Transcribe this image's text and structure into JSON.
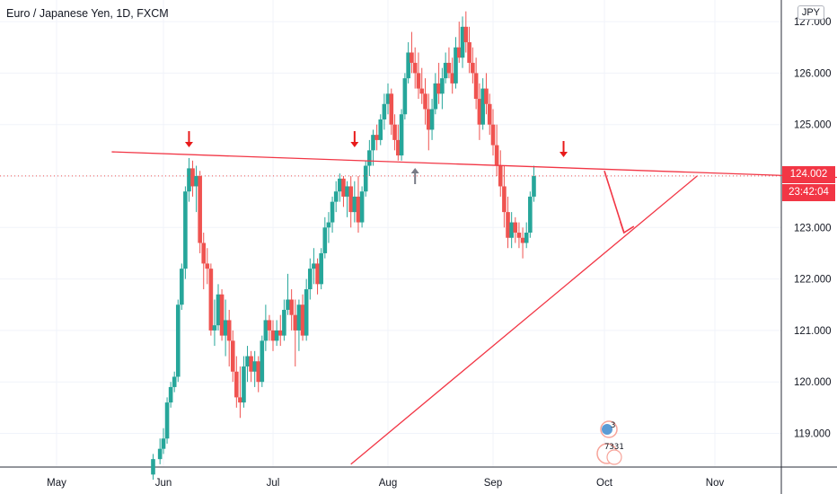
{
  "header": {
    "symbol_title": "Euro / Japanese Yen, 1D, FXCM"
  },
  "currency_label": "JPY",
  "price_badge": {
    "value": "124.002",
    "countdown": "23:42:04"
  },
  "colors": {
    "up": "#26a69a",
    "down": "#ef5350",
    "line": "#f23645",
    "marker": "#787b86",
    "axis": "#131722"
  },
  "event_markers": {
    "top": "3",
    "bottom": "7331"
  },
  "chart_data": {
    "type": "candlestick",
    "title": "Euro / Japanese Yen, 1D, FXCM",
    "y_axis_labels": [
      "119.000",
      "120.000",
      "121.000",
      "122.000",
      "123.000",
      "124.000",
      "125.000",
      "126.000",
      "127.000"
    ],
    "x_axis_labels": [
      "May",
      "Jun",
      "Jul",
      "Aug",
      "Sep",
      "Oct",
      "Nov"
    ],
    "ylim": [
      118.4,
      127.3
    ],
    "last_price": 124.002,
    "drawings": {
      "resistance_line": {
        "from": [
          "May 17",
          124.47
        ],
        "to": [
          "Nov 18",
          124.0
        ]
      },
      "support_line": {
        "from": [
          "Jul 22",
          118.4
        ],
        "to": [
          "Oct 27",
          124.0
        ]
      },
      "projection_arrow": {
        "from": [
          "Oct 1",
          124.1
        ],
        "to": [
          "Oct 7",
          122.9
        ]
      },
      "down_arrows": [
        "Jun 8",
        "Jul 23",
        "Sep 20"
      ],
      "up_arrow": "Aug 9"
    },
    "candles": [
      {
        "date": "May 29",
        "o": 118.2,
        "h": 118.6,
        "l": 118.1,
        "c": 118.5
      },
      {
        "date": "May 31",
        "o": 118.5,
        "h": 118.9,
        "l": 118.4,
        "c": 118.7
      },
      {
        "date": "Jun 1",
        "o": 118.7,
        "h": 119.1,
        "l": 118.6,
        "c": 118.9
      },
      {
        "date": "Jun 2",
        "o": 118.9,
        "h": 119.7,
        "l": 118.8,
        "c": 119.6
      },
      {
        "date": "Jun 3",
        "o": 119.6,
        "h": 120.0,
        "l": 119.5,
        "c": 119.9
      },
      {
        "date": "Jun 4",
        "o": 119.9,
        "h": 120.2,
        "l": 119.8,
        "c": 120.1
      },
      {
        "date": "Jun 5",
        "o": 120.1,
        "h": 121.6,
        "l": 120.0,
        "c": 121.5
      },
      {
        "date": "Jun 6",
        "o": 121.5,
        "h": 122.3,
        "l": 121.4,
        "c": 122.2
      },
      {
        "date": "Jun 7",
        "o": 122.2,
        "h": 123.8,
        "l": 122.0,
        "c": 123.7
      },
      {
        "date": "Jun 8",
        "o": 123.7,
        "h": 124.35,
        "l": 123.5,
        "c": 124.15
      },
      {
        "date": "Jun 9",
        "o": 124.15,
        "h": 124.3,
        "l": 123.6,
        "c": 123.8
      },
      {
        "date": "Jun 10",
        "o": 123.8,
        "h": 124.2,
        "l": 123.3,
        "c": 124.0
      },
      {
        "date": "Jun 11",
        "o": 124.0,
        "h": 124.1,
        "l": 122.5,
        "c": 122.7
      },
      {
        "date": "Jun 12",
        "o": 122.7,
        "h": 122.9,
        "l": 121.8,
        "c": 122.3
      },
      {
        "date": "Jun 13",
        "o": 122.3,
        "h": 122.6,
        "l": 121.9,
        "c": 122.2
      },
      {
        "date": "Jun 14",
        "o": 122.2,
        "h": 122.3,
        "l": 120.9,
        "c": 121.0
      },
      {
        "date": "Jun 15",
        "o": 121.0,
        "h": 121.6,
        "l": 120.7,
        "c": 121.1
      },
      {
        "date": "Jun 16",
        "o": 121.1,
        "h": 121.9,
        "l": 121.0,
        "c": 121.7
      },
      {
        "date": "Jun 17",
        "o": 121.7,
        "h": 121.8,
        "l": 120.8,
        "c": 120.9
      },
      {
        "date": "Jun 18",
        "o": 120.9,
        "h": 121.6,
        "l": 120.5,
        "c": 121.2
      },
      {
        "date": "Jun 19",
        "o": 121.2,
        "h": 121.4,
        "l": 120.3,
        "c": 120.8
      },
      {
        "date": "Jun 20",
        "o": 120.8,
        "h": 121.0,
        "l": 120.0,
        "c": 120.2
      },
      {
        "date": "Jun 21",
        "o": 120.2,
        "h": 120.5,
        "l": 119.5,
        "c": 119.7
      },
      {
        "date": "Jun 22",
        "o": 119.7,
        "h": 120.3,
        "l": 119.3,
        "c": 119.6
      },
      {
        "date": "Jun 23",
        "o": 119.6,
        "h": 120.5,
        "l": 119.5,
        "c": 120.3
      },
      {
        "date": "Jun 24",
        "o": 120.3,
        "h": 120.7,
        "l": 120.0,
        "c": 120.5
      },
      {
        "date": "Jun 25",
        "o": 120.5,
        "h": 120.6,
        "l": 120.0,
        "c": 120.2
      },
      {
        "date": "Jun 26",
        "o": 120.2,
        "h": 120.6,
        "l": 119.9,
        "c": 120.4
      },
      {
        "date": "Jun 27",
        "o": 120.4,
        "h": 120.5,
        "l": 119.8,
        "c": 120.0
      },
      {
        "date": "Jun 28",
        "o": 120.0,
        "h": 120.9,
        "l": 119.9,
        "c": 120.8
      },
      {
        "date": "Jun 29",
        "o": 120.8,
        "h": 121.5,
        "l": 120.6,
        "c": 121.2
      },
      {
        "date": "Jun 30",
        "o": 121.2,
        "h": 121.3,
        "l": 120.8,
        "c": 121.0
      },
      {
        "date": "Jul 1",
        "o": 121.0,
        "h": 121.2,
        "l": 120.6,
        "c": 120.8
      },
      {
        "date": "Jul 2",
        "o": 120.8,
        "h": 121.2,
        "l": 120.7,
        "c": 121.0
      },
      {
        "date": "Jul 3",
        "o": 121.0,
        "h": 121.3,
        "l": 120.7,
        "c": 120.9
      },
      {
        "date": "Jul 4",
        "o": 120.9,
        "h": 121.6,
        "l": 120.8,
        "c": 121.4
      },
      {
        "date": "Jul 5",
        "o": 121.4,
        "h": 122.1,
        "l": 121.3,
        "c": 121.6
      },
      {
        "date": "Jul 6",
        "o": 121.6,
        "h": 121.8,
        "l": 121.0,
        "c": 121.3
      },
      {
        "date": "Jul 7",
        "o": 121.3,
        "h": 121.6,
        "l": 120.3,
        "c": 121.0
      },
      {
        "date": "Jul 8",
        "o": 121.0,
        "h": 121.6,
        "l": 120.6,
        "c": 121.5
      },
      {
        "date": "Jul 9",
        "o": 121.5,
        "h": 121.7,
        "l": 120.8,
        "c": 120.9
      },
      {
        "date": "Jul 10",
        "o": 120.9,
        "h": 122.0,
        "l": 120.8,
        "c": 121.8
      },
      {
        "date": "Jul 11",
        "o": 121.8,
        "h": 122.4,
        "l": 121.6,
        "c": 122.2
      },
      {
        "date": "Jul 12",
        "o": 122.2,
        "h": 122.6,
        "l": 121.9,
        "c": 122.3
      },
      {
        "date": "Jul 13",
        "o": 122.3,
        "h": 122.4,
        "l": 121.7,
        "c": 121.9
      },
      {
        "date": "Jul 14",
        "o": 121.9,
        "h": 122.6,
        "l": 121.8,
        "c": 122.5
      },
      {
        "date": "Jul 15",
        "o": 122.5,
        "h": 123.2,
        "l": 122.4,
        "c": 123.0
      },
      {
        "date": "Jul 16",
        "o": 123.0,
        "h": 123.3,
        "l": 122.7,
        "c": 123.1
      },
      {
        "date": "Jul 17",
        "o": 123.1,
        "h": 123.6,
        "l": 122.9,
        "c": 123.5
      },
      {
        "date": "Jul 18",
        "o": 123.5,
        "h": 123.9,
        "l": 123.3,
        "c": 123.7
      },
      {
        "date": "Jul 19",
        "o": 123.7,
        "h": 124.05,
        "l": 123.5,
        "c": 123.95
      },
      {
        "date": "Jul 20",
        "o": 123.95,
        "h": 124.0,
        "l": 123.4,
        "c": 123.6
      },
      {
        "date": "Jul 21",
        "o": 123.6,
        "h": 123.9,
        "l": 123.2,
        "c": 123.8
      },
      {
        "date": "Jul 22",
        "o": 123.8,
        "h": 124.0,
        "l": 123.0,
        "c": 123.3
      },
      {
        "date": "Jul 23",
        "o": 123.3,
        "h": 123.9,
        "l": 123.1,
        "c": 123.6
      },
      {
        "date": "Jul 24",
        "o": 123.6,
        "h": 124.0,
        "l": 122.9,
        "c": 123.1
      },
      {
        "date": "Jul 25",
        "o": 123.1,
        "h": 123.8,
        "l": 123.0,
        "c": 123.7
      },
      {
        "date": "Jul 26",
        "o": 123.7,
        "h": 124.3,
        "l": 123.6,
        "c": 124.2
      },
      {
        "date": "Jul 27",
        "o": 124.2,
        "h": 124.7,
        "l": 124.0,
        "c": 124.5
      },
      {
        "date": "Jul 28",
        "o": 124.5,
        "h": 124.9,
        "l": 124.2,
        "c": 124.8
      },
      {
        "date": "Jul 29",
        "o": 124.8,
        "h": 125.0,
        "l": 124.5,
        "c": 124.7
      },
      {
        "date": "Jul 30",
        "o": 124.7,
        "h": 125.2,
        "l": 124.6,
        "c": 125.1
      },
      {
        "date": "Jul 31",
        "o": 125.1,
        "h": 125.6,
        "l": 124.9,
        "c": 125.4
      },
      {
        "date": "Aug 1",
        "o": 125.4,
        "h": 125.8,
        "l": 125.2,
        "c": 125.6
      },
      {
        "date": "Aug 2",
        "o": 125.6,
        "h": 125.7,
        "l": 124.8,
        "c": 125.0
      },
      {
        "date": "Aug 3",
        "o": 125.0,
        "h": 125.2,
        "l": 124.5,
        "c": 124.7
      },
      {
        "date": "Aug 4",
        "o": 124.7,
        "h": 125.0,
        "l": 124.3,
        "c": 124.4
      },
      {
        "date": "Aug 5",
        "o": 124.4,
        "h": 125.3,
        "l": 124.3,
        "c": 125.2
      },
      {
        "date": "Aug 6",
        "o": 125.2,
        "h": 126.0,
        "l": 125.1,
        "c": 125.9
      },
      {
        "date": "Aug 7",
        "o": 125.9,
        "h": 126.6,
        "l": 125.8,
        "c": 126.4
      },
      {
        "date": "Aug 8",
        "o": 126.4,
        "h": 126.8,
        "l": 126.0,
        "c": 126.2
      },
      {
        "date": "Aug 9",
        "o": 126.2,
        "h": 126.5,
        "l": 125.7,
        "c": 126.0
      },
      {
        "date": "Aug 10",
        "o": 126.0,
        "h": 126.4,
        "l": 125.5,
        "c": 125.7
      },
      {
        "date": "Aug 11",
        "o": 125.7,
        "h": 126.1,
        "l": 125.4,
        "c": 125.6
      },
      {
        "date": "Aug 12",
        "o": 125.6,
        "h": 125.9,
        "l": 125.0,
        "c": 125.3
      },
      {
        "date": "Aug 13",
        "o": 125.3,
        "h": 125.6,
        "l": 124.5,
        "c": 124.9
      },
      {
        "date": "Aug 14",
        "o": 124.9,
        "h": 125.5,
        "l": 124.7,
        "c": 125.3
      },
      {
        "date": "Aug 15",
        "o": 125.3,
        "h": 126.0,
        "l": 125.2,
        "c": 125.8
      },
      {
        "date": "Aug 16",
        "o": 125.8,
        "h": 126.2,
        "l": 125.4,
        "c": 125.6
      },
      {
        "date": "Aug 17",
        "o": 125.6,
        "h": 126.1,
        "l": 125.3,
        "c": 125.9
      },
      {
        "date": "Aug 18",
        "o": 125.9,
        "h": 126.4,
        "l": 125.8,
        "c": 126.2
      },
      {
        "date": "Aug 19",
        "o": 126.2,
        "h": 126.5,
        "l": 125.9,
        "c": 126.0
      },
      {
        "date": "Aug 20",
        "o": 126.0,
        "h": 126.3,
        "l": 125.6,
        "c": 125.8
      },
      {
        "date": "Aug 21",
        "o": 125.8,
        "h": 126.7,
        "l": 125.7,
        "c": 126.5
      },
      {
        "date": "Aug 22",
        "o": 126.5,
        "h": 127.0,
        "l": 126.2,
        "c": 126.3
      },
      {
        "date": "Aug 23",
        "o": 126.3,
        "h": 127.1,
        "l": 126.1,
        "c": 126.9
      },
      {
        "date": "Aug 24",
        "o": 126.9,
        "h": 127.2,
        "l": 126.4,
        "c": 126.6
      },
      {
        "date": "Aug 25",
        "o": 126.6,
        "h": 126.9,
        "l": 126.0,
        "c": 126.2
      },
      {
        "date": "Aug 26",
        "o": 126.2,
        "h": 126.5,
        "l": 125.8,
        "c": 126.0
      },
      {
        "date": "Aug 27",
        "o": 126.0,
        "h": 126.3,
        "l": 125.3,
        "c": 125.5
      },
      {
        "date": "Aug 28",
        "o": 125.5,
        "h": 125.8,
        "l": 124.7,
        "c": 125.0
      },
      {
        "date": "Aug 29",
        "o": 125.0,
        "h": 125.9,
        "l": 124.9,
        "c": 125.7
      },
      {
        "date": "Aug 30",
        "o": 125.7,
        "h": 126.0,
        "l": 125.2,
        "c": 125.4
      },
      {
        "date": "Aug 31",
        "o": 125.4,
        "h": 125.6,
        "l": 124.8,
        "c": 125.0
      },
      {
        "date": "Sep 1",
        "o": 125.0,
        "h": 125.3,
        "l": 124.4,
        "c": 124.6
      },
      {
        "date": "Sep 2",
        "o": 124.6,
        "h": 125.0,
        "l": 124.0,
        "c": 124.2
      },
      {
        "date": "Sep 3",
        "o": 124.2,
        "h": 124.5,
        "l": 123.6,
        "c": 123.8
      },
      {
        "date": "Sep 4",
        "o": 123.8,
        "h": 124.2,
        "l": 123.0,
        "c": 123.3
      },
      {
        "date": "Sep 5",
        "o": 123.3,
        "h": 123.6,
        "l": 122.6,
        "c": 122.8
      },
      {
        "date": "Sep 6",
        "o": 122.8,
        "h": 123.3,
        "l": 122.6,
        "c": 123.1
      },
      {
        "date": "Sep 7",
        "o": 123.1,
        "h": 123.2,
        "l": 122.7,
        "c": 122.9
      },
      {
        "date": "Sep 8",
        "o": 122.9,
        "h": 123.1,
        "l": 122.6,
        "c": 122.8
      },
      {
        "date": "Sep 9",
        "o": 122.8,
        "h": 123.0,
        "l": 122.4,
        "c": 122.7
      },
      {
        "date": "Sep 10",
        "o": 122.7,
        "h": 123.1,
        "l": 122.6,
        "c": 122.9
      },
      {
        "date": "Sep 11",
        "o": 122.9,
        "h": 123.7,
        "l": 122.8,
        "c": 123.6
      },
      {
        "date": "Sep 12",
        "o": 123.6,
        "h": 124.2,
        "l": 123.5,
        "c": 124.0
      }
    ]
  }
}
